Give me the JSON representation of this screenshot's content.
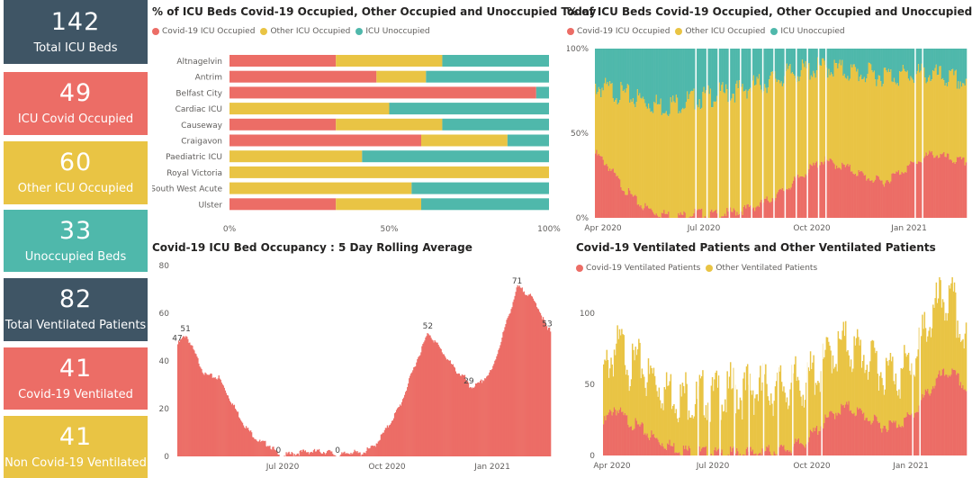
{
  "colors": {
    "covid": "#ec6d66",
    "other": "#e9c444",
    "unoccupied": "#4fb8ab",
    "slate": "#3f5565"
  },
  "kpis": [
    {
      "value": "142",
      "label": "Total ICU Beds",
      "color": "slate"
    },
    {
      "value": "49",
      "label": "ICU Covid Occupied",
      "color": "red"
    },
    {
      "value": "60",
      "label": "Other ICU Occupied",
      "color": "yellow"
    },
    {
      "value": "33",
      "label": "Unoccupied Beds",
      "color": "teal"
    },
    {
      "value": "82",
      "label": "Total Ventilated Patients",
      "color": "slate"
    },
    {
      "value": "41",
      "label": "Covid-19 Ventilated",
      "color": "red"
    },
    {
      "value": "41",
      "label": "Non Covid-19 Ventilated",
      "color": "yellow"
    }
  ],
  "chart_data": [
    {
      "type": "bar",
      "stacked": true,
      "orientation": "horizontal",
      "title": "% of ICU Beds Covid-19 Occupied, Other Occupied and Unoccupied Today",
      "legend": [
        "Covid-19 ICU Occupied",
        "Other ICU Occupied",
        "ICU Unoccupied"
      ],
      "categories": [
        "Altnagelvin",
        "Antrim",
        "Belfast City",
        "Cardiac ICU",
        "Causeway",
        "Craigavon",
        "Paediatric ICU",
        "Royal Victoria",
        "South West Acute",
        "Ulster"
      ],
      "series": [
        {
          "name": "Covid-19 ICU Occupied",
          "values": [
            33.3,
            46,
            96,
            0,
            33.3,
            60,
            0,
            0,
            0,
            33.3
          ]
        },
        {
          "name": "Other ICU Occupied",
          "values": [
            33.3,
            15.5,
            0,
            50,
            33.3,
            27,
            41.5,
            100,
            57,
            26.7
          ]
        },
        {
          "name": "ICU Unoccupied",
          "values": [
            33.4,
            38.5,
            4,
            50,
            33.4,
            13,
            58.5,
            0,
            43,
            40
          ]
        }
      ],
      "xlim": [
        0,
        100
      ],
      "xticks": [
        "0%",
        "50%",
        "100%"
      ]
    },
    {
      "type": "area",
      "stacked": true,
      "title": "% of ICU Beds Covid-19 Occupied, Other Occupied and Unoccupied",
      "legend": [
        "Covid-19 ICU Occupied",
        "Other ICU Occupied",
        "ICU Unoccupied"
      ],
      "xticks": [
        "Apr 2020",
        "Jul 2020",
        "Oct 2020",
        "Jan 2021"
      ],
      "yticks": [
        "0%",
        "50%",
        "100%"
      ],
      "ylim": [
        0,
        100
      ],
      "anchors": {
        "covid": [
          [
            0,
            38
          ],
          [
            10,
            32
          ],
          [
            25,
            18
          ],
          [
            40,
            8
          ],
          [
            55,
            3
          ],
          [
            75,
            1
          ],
          [
            90,
            3
          ],
          [
            110,
            2
          ],
          [
            130,
            4
          ],
          [
            150,
            8
          ],
          [
            170,
            16
          ],
          [
            190,
            27
          ],
          [
            205,
            34
          ],
          [
            215,
            32
          ],
          [
            230,
            29
          ],
          [
            245,
            24
          ],
          [
            260,
            21
          ],
          [
            275,
            27
          ],
          [
            290,
            33
          ],
          [
            305,
            38
          ],
          [
            315,
            36
          ],
          [
            325,
            34
          ],
          [
            335,
            33
          ]
        ],
        "covid_plus_other": [
          [
            0,
            78
          ],
          [
            20,
            74
          ],
          [
            40,
            70
          ],
          [
            60,
            66
          ],
          [
            90,
            70
          ],
          [
            120,
            74
          ],
          [
            150,
            79
          ],
          [
            180,
            86
          ],
          [
            210,
            89
          ],
          [
            240,
            85
          ],
          [
            270,
            84
          ],
          [
            300,
            85
          ],
          [
            335,
            80
          ]
        ]
      }
    },
    {
      "type": "bar",
      "title": "Covid-19 ICU Bed Occupancy : 5 Day Rolling Average",
      "yticks": [
        "0",
        "20",
        "40",
        "60",
        "80"
      ],
      "ylim": [
        0,
        80
      ],
      "xticks": [
        "Jul 2020",
        "Oct 2020",
        "Jan 2021"
      ],
      "data_labels": [
        {
          "label": "51",
          "day": 9,
          "value": 51
        },
        {
          "label": "47",
          "day": 0,
          "value": 47
        },
        {
          "label": "0",
          "day": 111,
          "value": 0
        },
        {
          "label": "0",
          "day": 176,
          "value": 0
        },
        {
          "label": "52",
          "day": 275,
          "value": 52
        },
        {
          "label": "29",
          "day": 320,
          "value": 29
        },
        {
          "label": "71",
          "day": 373,
          "value": 71
        },
        {
          "label": "53",
          "day": 406,
          "value": 53
        }
      ],
      "anchors": [
        [
          0,
          47
        ],
        [
          9,
          51
        ],
        [
          20,
          42
        ],
        [
          30,
          34
        ],
        [
          45,
          33
        ],
        [
          60,
          22
        ],
        [
          75,
          12
        ],
        [
          90,
          6
        ],
        [
          100,
          5
        ],
        [
          105,
          3
        ],
        [
          111,
          0
        ],
        [
          125,
          1
        ],
        [
          140,
          2
        ],
        [
          165,
          2
        ],
        [
          176,
          0
        ],
        [
          190,
          2
        ],
        [
          200,
          1
        ],
        [
          215,
          4
        ],
        [
          230,
          12
        ],
        [
          245,
          22
        ],
        [
          260,
          38
        ],
        [
          275,
          52
        ],
        [
          290,
          44
        ],
        [
          305,
          36
        ],
        [
          315,
          33
        ],
        [
          320,
          29
        ],
        [
          330,
          30
        ],
        [
          345,
          36
        ],
        [
          360,
          55
        ],
        [
          373,
          71
        ],
        [
          385,
          68
        ],
        [
          395,
          63
        ],
        [
          406,
          53
        ]
      ]
    },
    {
      "type": "bar",
      "stacked": true,
      "title": "Covid-19 Ventilated Patients and Other Ventilated Patients",
      "legend": [
        "Covid-19 Ventilated Patients",
        "Other Ventilated Patients"
      ],
      "yticks": [
        "0",
        "50",
        "100"
      ],
      "ylim": [
        0,
        110
      ],
      "xticks": [
        "Apr 2020",
        "Jul 2020",
        "Oct 2020",
        "Jan 2021"
      ],
      "anchors": {
        "covid": [
          [
            0,
            22
          ],
          [
            10,
            34
          ],
          [
            20,
            26
          ],
          [
            35,
            19
          ],
          [
            50,
            11
          ],
          [
            65,
            6
          ],
          [
            80,
            3
          ],
          [
            110,
            1
          ],
          [
            140,
            2
          ],
          [
            170,
            4
          ],
          [
            190,
            10
          ],
          [
            205,
            22
          ],
          [
            220,
            32
          ],
          [
            230,
            34
          ],
          [
            245,
            28
          ],
          [
            260,
            21
          ],
          [
            275,
            22
          ],
          [
            290,
            28
          ],
          [
            300,
            40
          ],
          [
            315,
            55
          ],
          [
            325,
            59
          ],
          [
            335,
            52
          ],
          [
            340,
            46
          ]
        ],
        "other": [
          [
            0,
            32
          ],
          [
            15,
            45
          ],
          [
            35,
            42
          ],
          [
            60,
            40
          ],
          [
            90,
            37
          ],
          [
            120,
            42
          ],
          [
            150,
            45
          ],
          [
            180,
            43
          ],
          [
            200,
            40
          ],
          [
            220,
            44
          ],
          [
            240,
            42
          ],
          [
            260,
            40
          ],
          [
            280,
            35
          ],
          [
            300,
            40
          ],
          [
            315,
            43
          ],
          [
            325,
            42
          ],
          [
            340,
            33
          ]
        ]
      }
    }
  ]
}
